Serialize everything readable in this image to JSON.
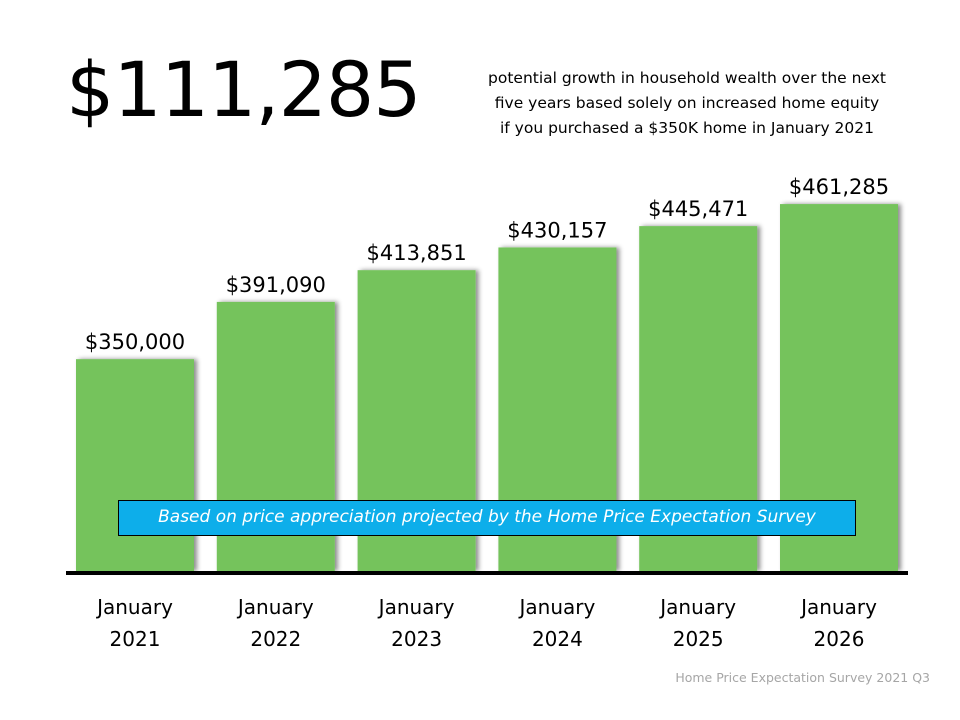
{
  "headline": {
    "value": "$111,285"
  },
  "subtitle": "potential growth in household wealth over the next\nfive years based solely on increased home equity\nif you purchased a $350K home in January 2021",
  "banner": "Based on price appreciation projected by the Home Price Expectation Survey",
  "source": "Home Price Expectation Survey 2021 Q3",
  "colors": {
    "bar": "#74c35c",
    "banner": "#0daeea",
    "axis": "#000000"
  },
  "chart_data": {
    "type": "bar",
    "categories": [
      [
        "January",
        "2021"
      ],
      [
        "January",
        "2022"
      ],
      [
        "January",
        "2023"
      ],
      [
        "January",
        "2024"
      ],
      [
        "January",
        "2025"
      ],
      [
        "January",
        "2026"
      ]
    ],
    "values": [
      350000,
      391090,
      413851,
      430157,
      445471,
      461285
    ],
    "data_labels": [
      "$350,000",
      "$391,090",
      "$413,851",
      "$430,157",
      "$445,471",
      "$461,285"
    ],
    "title": "",
    "xlabel": "",
    "ylabel": "",
    "ylim": [
      198000,
      480000
    ],
    "grid": false,
    "legend": "none"
  }
}
